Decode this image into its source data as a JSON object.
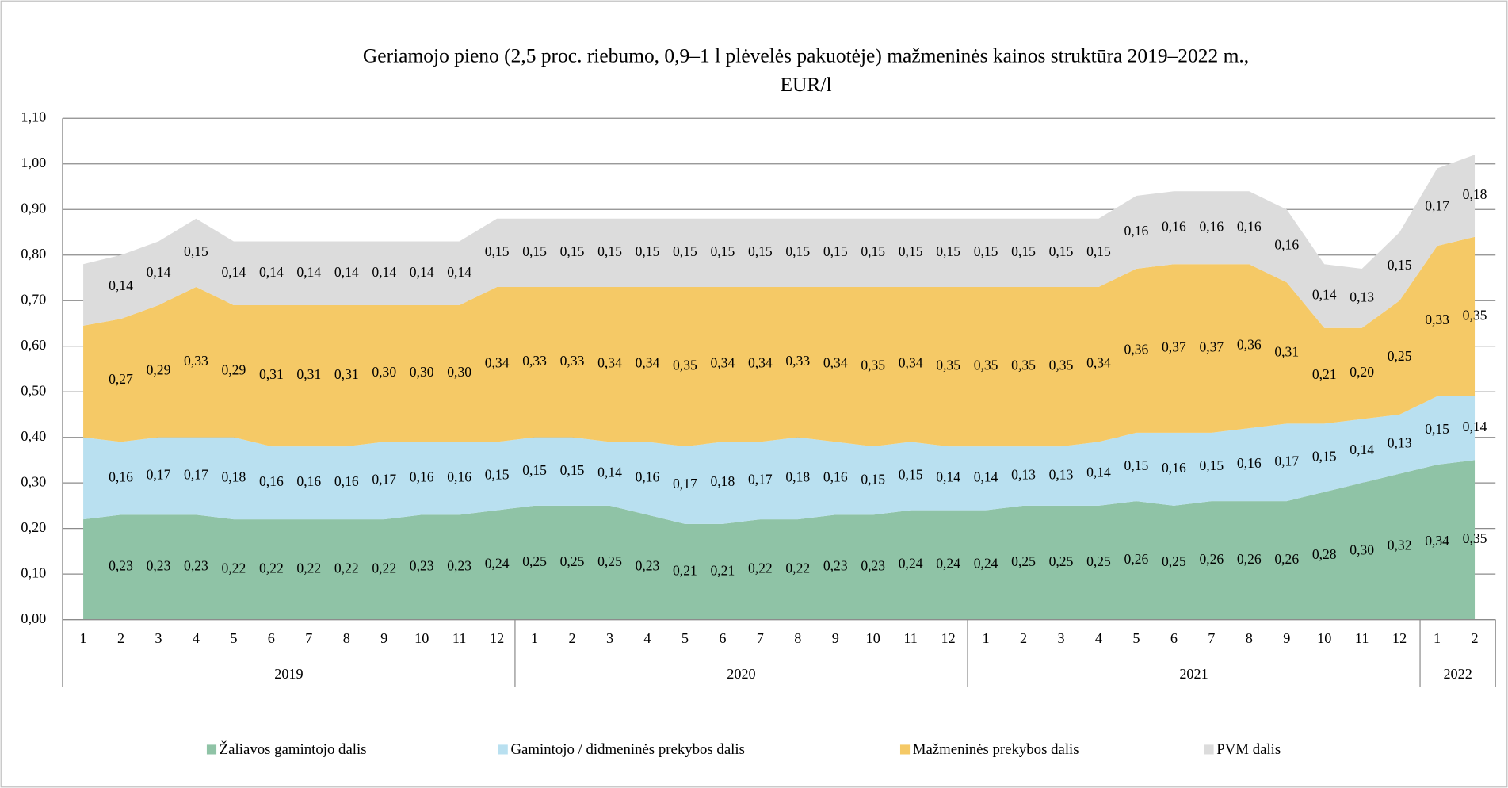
{
  "chart_data": {
    "type": "stacked_area",
    "title": "Geriamojo pieno (2,5 proc. riebumo, 0,9–1 l plėvelės pakuotėje) mažmeninės kainos struktūra 2019–2022 m.,",
    "subtitle": "EUR/l",
    "groups": [
      {
        "name": "2019",
        "categories": [
          "1",
          "2",
          "3",
          "4",
          "5",
          "6",
          "7",
          "8",
          "9",
          "10",
          "11",
          "12"
        ]
      },
      {
        "name": "2020",
        "categories": [
          "1",
          "2",
          "3",
          "4",
          "5",
          "6",
          "7",
          "8",
          "9",
          "10",
          "11",
          "12"
        ]
      },
      {
        "name": "2021",
        "categories": [
          "1",
          "2",
          "3",
          "4",
          "5",
          "6",
          "7",
          "8",
          "9",
          "10",
          "11",
          "12"
        ]
      },
      {
        "name": "2022",
        "categories": [
          "1",
          "2"
        ]
      }
    ],
    "ylim": [
      0,
      1.1
    ],
    "yticks": [
      {
        "value": 0,
        "label": "0,00"
      },
      {
        "value": 0.1,
        "label": "0,10"
      },
      {
        "value": 0.2,
        "label": "0,20"
      },
      {
        "value": 0.3,
        "label": "0,30"
      },
      {
        "value": 0.4,
        "label": "0,40"
      },
      {
        "value": 0.5,
        "label": "0,50"
      },
      {
        "value": 0.6,
        "label": "0,60"
      },
      {
        "value": 0.7,
        "label": "0,70"
      },
      {
        "value": 0.8,
        "label": "0,80"
      },
      {
        "value": 0.9,
        "label": "0,90"
      },
      {
        "value": 1.0,
        "label": "1,00"
      },
      {
        "value": 1.1,
        "label": "1,10"
      }
    ],
    "grid": true,
    "legend": "bottom",
    "series": [
      {
        "name": "Žaliavos gamintojo dalis",
        "color": "#8fc3a6",
        "values": [
          0.22,
          0.23,
          0.23,
          0.23,
          0.22,
          0.22,
          0.22,
          0.22,
          0.22,
          0.23,
          0.23,
          0.24,
          0.25,
          0.25,
          0.25,
          0.23,
          0.21,
          0.21,
          0.22,
          0.22,
          0.23,
          0.23,
          0.24,
          0.24,
          0.24,
          0.25,
          0.25,
          0.25,
          0.26,
          0.25,
          0.26,
          0.26,
          0.26,
          0.28,
          0.3,
          0.32,
          0.34,
          0.35
        ],
        "value_labels": [
          null,
          "0,23",
          "0,23",
          "0,23",
          "0,22",
          "0,22",
          "0,22",
          "0,22",
          "0,22",
          "0,23",
          "0,23",
          "0,24",
          "0,25",
          "0,25",
          "0,25",
          "0,23",
          "0,21",
          "0,21",
          "0,22",
          "0,22",
          "0,23",
          "0,23",
          "0,24",
          "0,24",
          "0,24",
          "0,25",
          "0,25",
          "0,25",
          "0,26",
          "0,25",
          "0,26",
          "0,26",
          "0,26",
          "0,28",
          "0,30",
          "0,32",
          "0,34",
          "0,35"
        ]
      },
      {
        "name": "Gamintojo / didmeninės prekybos dalis",
        "color": "#b9e0f0",
        "values": [
          0.18,
          0.16,
          0.17,
          0.17,
          0.18,
          0.16,
          0.16,
          0.16,
          0.17,
          0.16,
          0.16,
          0.15,
          0.15,
          0.15,
          0.14,
          0.16,
          0.17,
          0.18,
          0.17,
          0.18,
          0.16,
          0.15,
          0.15,
          0.14,
          0.14,
          0.13,
          0.13,
          0.14,
          0.15,
          0.16,
          0.15,
          0.16,
          0.17,
          0.15,
          0.14,
          0.13,
          0.15,
          0.14
        ],
        "value_labels": [
          null,
          "0,16",
          "0,17",
          "0,17",
          "0,18",
          "0,16",
          "0,16",
          "0,16",
          "0,17",
          "0,16",
          "0,16",
          "0,15",
          "0,15",
          "0,15",
          "0,14",
          "0,16",
          "0,17",
          "0,18",
          "0,17",
          "0,18",
          "0,16",
          "0,15",
          "0,15",
          "0,14",
          "0,14",
          "0,13",
          "0,13",
          "0,14",
          "0,15",
          "0,16",
          "0,15",
          "0,16",
          "0,17",
          "0,15",
          "0,14",
          "0,13",
          "0,15",
          "0,14"
        ]
      },
      {
        "name": "Mažmeninės prekybos dalis",
        "color": "#f5c966",
        "values": [
          0.245,
          0.27,
          0.29,
          0.33,
          0.29,
          0.31,
          0.31,
          0.31,
          0.3,
          0.3,
          0.3,
          0.34,
          0.33,
          0.33,
          0.34,
          0.34,
          0.35,
          0.34,
          0.34,
          0.33,
          0.34,
          0.35,
          0.34,
          0.35,
          0.35,
          0.35,
          0.35,
          0.34,
          0.36,
          0.37,
          0.37,
          0.36,
          0.31,
          0.21,
          0.2,
          0.25,
          0.33,
          0.35
        ],
        "value_labels": [
          null,
          "0,27",
          "0,29",
          "0,33",
          "0,29",
          "0,31",
          "0,31",
          "0,31",
          "0,30",
          "0,30",
          "0,30",
          "0,34",
          "0,33",
          "0,33",
          "0,34",
          "0,34",
          "0,35",
          "0,34",
          "0,34",
          "0,33",
          "0,34",
          "0,35",
          "0,34",
          "0,35",
          "0,35",
          "0,35",
          "0,35",
          "0,34",
          "0,36",
          "0,37",
          "0,37",
          "0,36",
          "0,31",
          "0,21",
          "0,20",
          "0,25",
          "0,33",
          "0,35"
        ]
      },
      {
        "name": "PVM dalis",
        "color": "#dcdcdc",
        "values": [
          0.135,
          0.14,
          0.14,
          0.15,
          0.14,
          0.14,
          0.14,
          0.14,
          0.14,
          0.14,
          0.14,
          0.15,
          0.15,
          0.15,
          0.15,
          0.15,
          0.15,
          0.15,
          0.15,
          0.15,
          0.15,
          0.15,
          0.15,
          0.15,
          0.15,
          0.15,
          0.15,
          0.15,
          0.16,
          0.16,
          0.16,
          0.16,
          0.16,
          0.14,
          0.13,
          0.15,
          0.17,
          0.18
        ],
        "value_labels": [
          null,
          "0,14",
          "0,14",
          "0,15",
          "0,14",
          "0,14",
          "0,14",
          "0,14",
          "0,14",
          "0,14",
          "0,14",
          "0,15",
          "0,15",
          "0,15",
          "0,15",
          "0,15",
          "0,15",
          "0,15",
          "0,15",
          "0,15",
          "0,15",
          "0,15",
          "0,15",
          "0,15",
          "0,15",
          "0,15",
          "0,15",
          "0,15",
          "0,16",
          "0,16",
          "0,16",
          "0,16",
          "0,16",
          "0,14",
          "0,13",
          "0,15",
          "0,17",
          "0,18"
        ]
      }
    ]
  }
}
